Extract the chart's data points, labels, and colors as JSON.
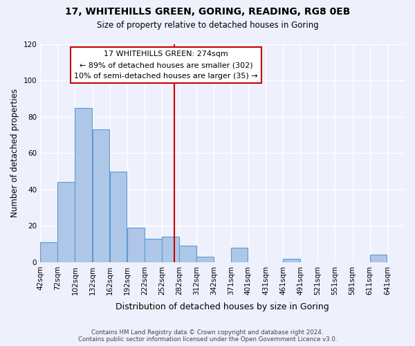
{
  "title": "17, WHITEHILLS GREEN, GORING, READING, RG8 0EB",
  "subtitle": "Size of property relative to detached houses in Goring",
  "xlabel": "Distribution of detached houses by size in Goring",
  "ylabel": "Number of detached properties",
  "footer_line1": "Contains HM Land Registry data © Crown copyright and database right 2024.",
  "footer_line2": "Contains public sector information licensed under the Open Government Licence v3.0.",
  "bin_labels": [
    "42sqm",
    "72sqm",
    "102sqm",
    "132sqm",
    "162sqm",
    "192sqm",
    "222sqm",
    "252sqm",
    "282sqm",
    "312sqm",
    "342sqm",
    "371sqm",
    "401sqm",
    "431sqm",
    "461sqm",
    "491sqm",
    "521sqm",
    "551sqm",
    "581sqm",
    "611sqm",
    "641sqm"
  ],
  "bar_values": [
    11,
    44,
    85,
    73,
    50,
    19,
    13,
    14,
    9,
    3,
    0,
    8,
    0,
    0,
    2,
    0,
    0,
    0,
    0,
    4,
    0
  ],
  "bar_color": "#aec6e8",
  "bar_edge_color": "#5b9bd5",
  "reference_line_x": 274,
  "bin_starts": [
    42,
    72,
    102,
    132,
    162,
    192,
    222,
    252,
    282,
    312,
    342,
    371,
    401,
    431,
    461,
    491,
    521,
    551,
    581,
    611,
    641
  ],
  "bin_width": 30,
  "annotation_title": "17 WHITEHILLS GREEN: 274sqm",
  "annotation_line1": "← 89% of detached houses are smaller (302)",
  "annotation_line2": "10% of semi-detached houses are larger (35) →",
  "annotation_box_color": "#ffffff",
  "annotation_border_color": "#cc0000",
  "ylim": [
    0,
    120
  ],
  "yticks": [
    0,
    20,
    40,
    60,
    80,
    100,
    120
  ],
  "background_color": "#eef1fb",
  "xlim_left": 42,
  "xlim_right": 671
}
